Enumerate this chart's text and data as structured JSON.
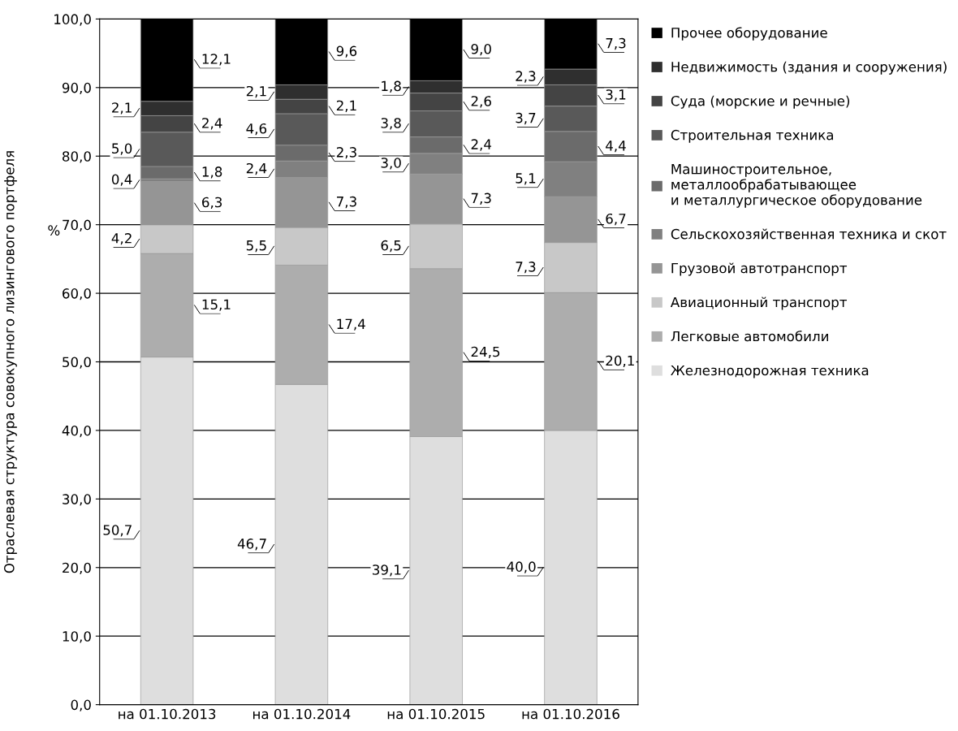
{
  "chart_data": {
    "type": "bar",
    "stacked": true,
    "ylabel": "Отраслевая структура совокупного лизингового портфеля",
    "annotations": [
      "%"
    ],
    "categories": [
      "на 01.10.2013",
      "на 01.10.2014",
      "на 01.10.2015",
      "на 01.10.2016"
    ],
    "ylim": [
      0,
      100
    ],
    "yticks": [
      {
        "value": 0,
        "label": "0,0"
      },
      {
        "value": 10,
        "label": "10,0"
      },
      {
        "value": 20,
        "label": "20,0"
      },
      {
        "value": 30,
        "label": "30,0"
      },
      {
        "value": 40,
        "label": "40,0"
      },
      {
        "value": 50,
        "label": "50,0"
      },
      {
        "value": 60,
        "label": "60,0"
      },
      {
        "value": 70,
        "label": "70,0"
      },
      {
        "value": 80,
        "label": "80,0"
      },
      {
        "value": 90,
        "label": "90,0"
      },
      {
        "value": 100,
        "label": "100,0"
      }
    ],
    "grid": "y",
    "legend": "right",
    "series": [
      {
        "name": "Железнодорожная техника",
        "color": "#dedede",
        "values": [
          50.7,
          46.7,
          39.1,
          40.0
        ],
        "value_labels": [
          "50,7",
          "46,7",
          "39,1",
          "40,0"
        ]
      },
      {
        "name": "Легковые автомобили",
        "color": "#adadad",
        "values": [
          15.1,
          17.4,
          24.5,
          20.1
        ],
        "value_labels": [
          "15,1",
          "17,4",
          "24,5",
          "20,1"
        ]
      },
      {
        "name": "Авиационный транспорт",
        "color": "#c8c8c8",
        "values": [
          4.2,
          5.5,
          6.5,
          7.3
        ],
        "value_labels": [
          "4,2",
          "5,5",
          "6,5",
          "7,3"
        ]
      },
      {
        "name": "Грузовой автотранспорт",
        "color": "#959595",
        "values": [
          6.3,
          7.3,
          7.3,
          6.7
        ],
        "value_labels": [
          "6,3",
          "7,3",
          "7,3",
          "6,7"
        ]
      },
      {
        "name": "Сельскохозяйственная техника и скот",
        "color": "#808080",
        "values": [
          0.4,
          2.4,
          3.0,
          5.1
        ],
        "value_labels": [
          "0,4",
          "2,4",
          "3,0",
          "5,1"
        ]
      },
      {
        "name": "Машиностроительное,\nметаллообрабатывающее\nи металлургическое оборудование",
        "color": "#6b6b6b",
        "values": [
          1.8,
          2.3,
          2.4,
          4.4
        ],
        "value_labels": [
          "1,8",
          "2,3",
          "2,4",
          "4,4"
        ]
      },
      {
        "name": "Строительная техника",
        "color": "#595959",
        "values": [
          5.0,
          4.6,
          3.8,
          3.7
        ],
        "value_labels": [
          "5,0",
          "4,6",
          "3,8",
          "3,7"
        ]
      },
      {
        "name": "Суда (морские и речные)",
        "color": "#444444",
        "values": [
          2.4,
          2.1,
          2.6,
          3.1
        ],
        "value_labels": [
          "2,4",
          "2,1",
          "2,6",
          "3,1"
        ]
      },
      {
        "name": "Недвижимость (здания и сооружения)",
        "color": "#2f2f2f",
        "values": [
          2.1,
          2.1,
          1.8,
          2.3
        ],
        "value_labels": [
          "2,1",
          "2,1",
          "1,8",
          "2,3"
        ]
      },
      {
        "name": "Прочее оборудование",
        "color": "#000000",
        "values": [
          12.1,
          9.6,
          9.0,
          7.3
        ],
        "value_labels": [
          "12,1",
          "9,6",
          "9,0",
          "7,3"
        ]
      }
    ]
  }
}
